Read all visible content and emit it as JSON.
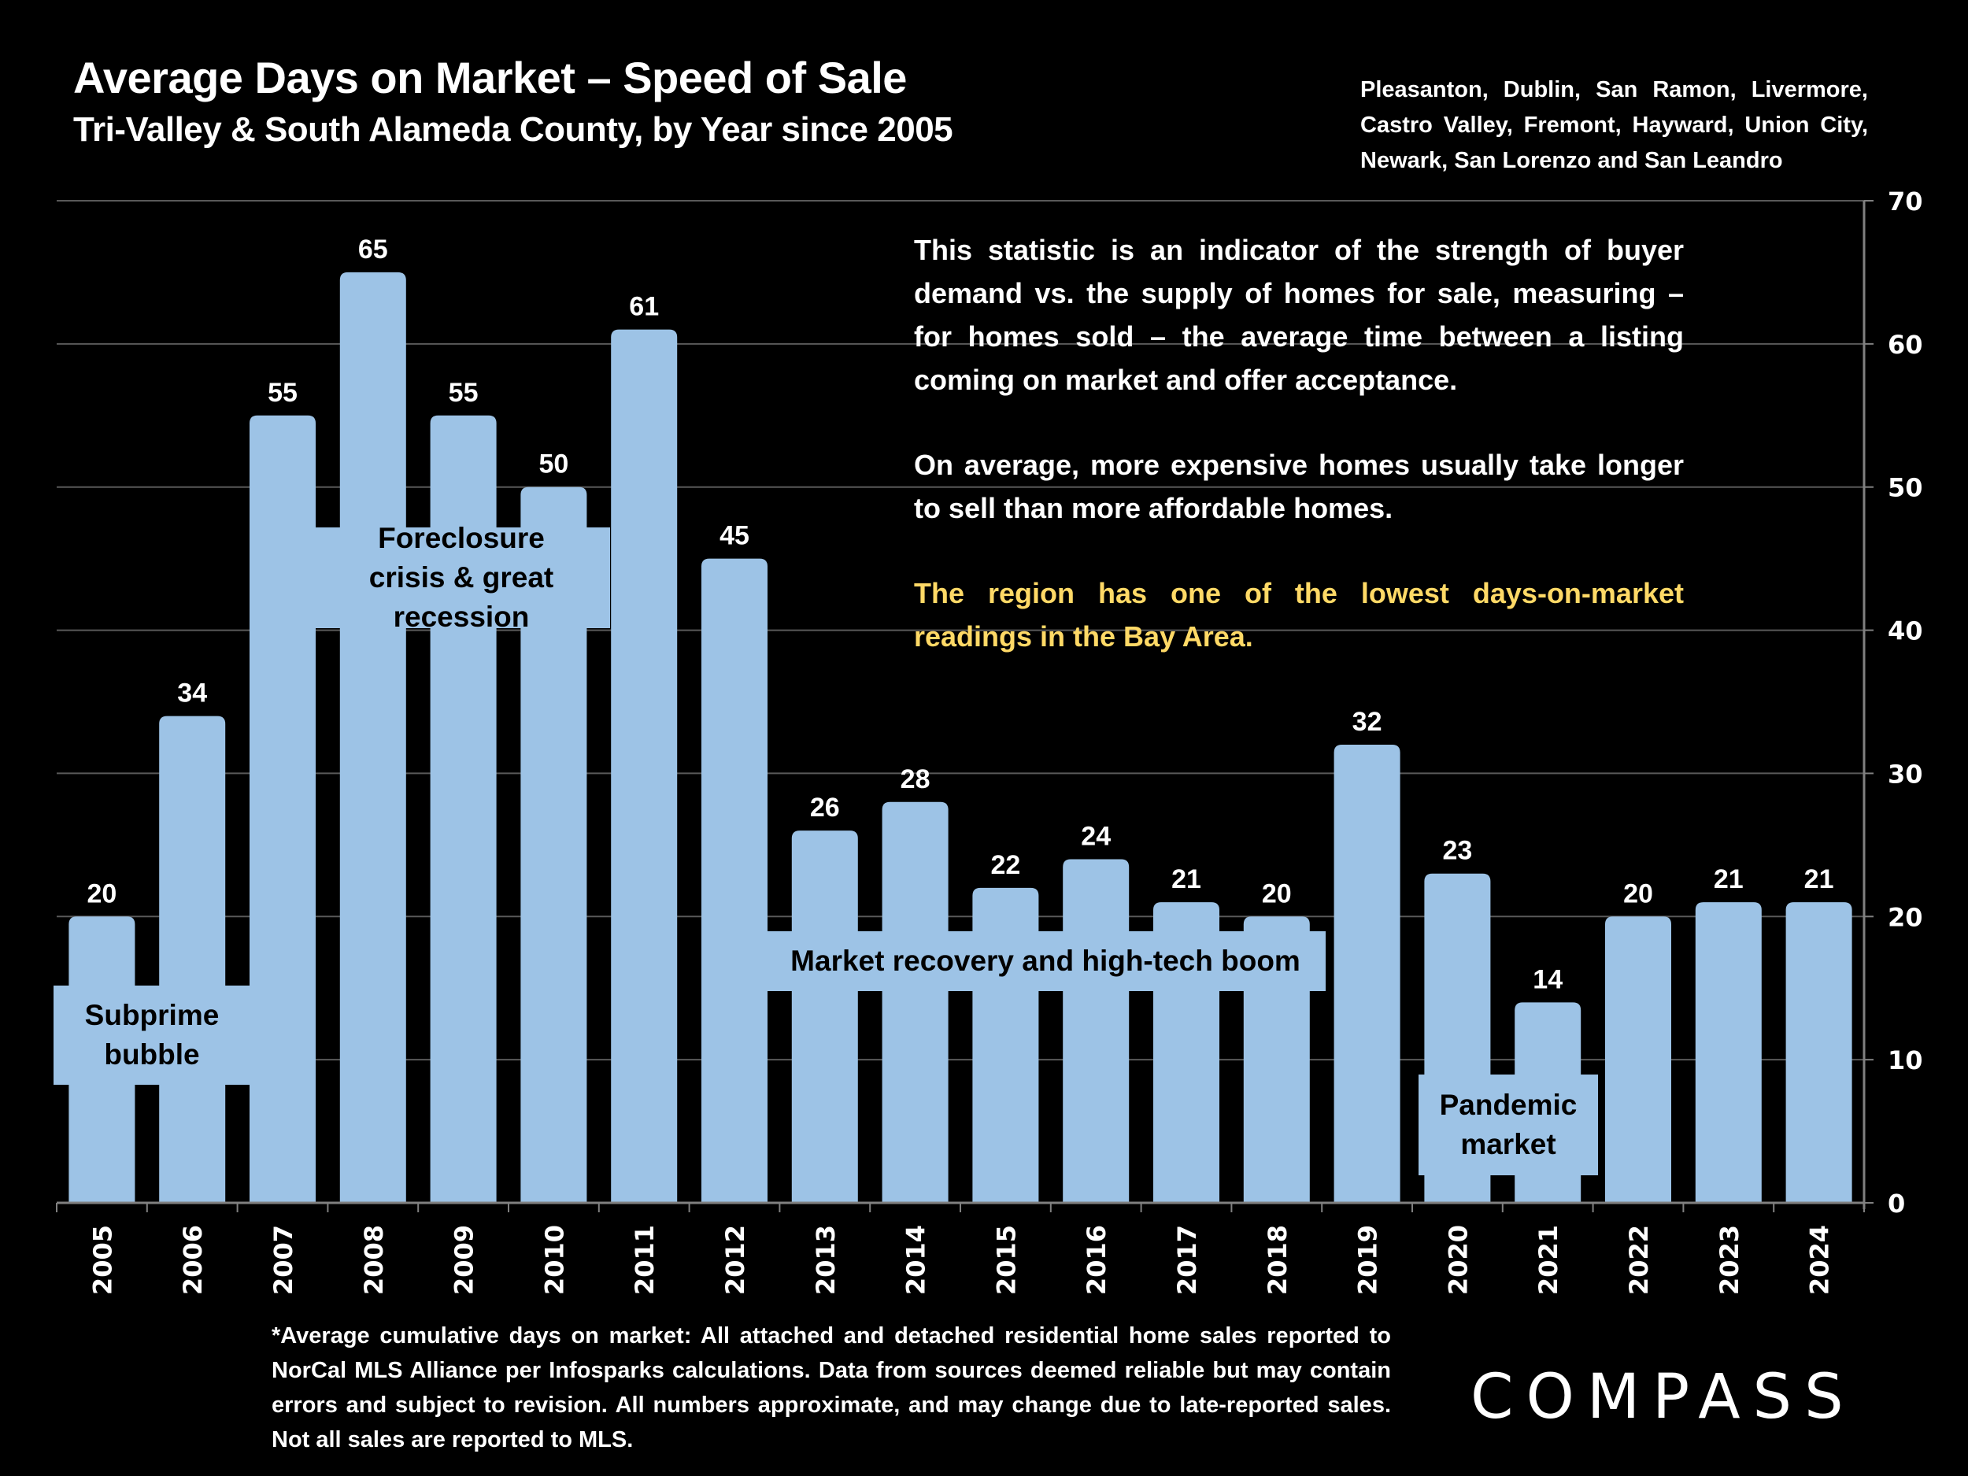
{
  "header": {
    "title": "Average Days on Market – Speed of Sale",
    "subtitle": "Tri-Valley & South Alameda County, by Year since 2005",
    "region_note": "Pleasanton, Dublin, San Ramon, Livermore, Castro Valley, Fremont, Hayward, Union City, Newark, San Lorenzo and San Leandro"
  },
  "blurb": {
    "paragraph1": "This statistic is an indicator of the strength of buyer demand vs. the supply of homes for sale, measuring – for homes sold – the average time between a listing coming on market and offer acceptance.",
    "paragraph2": "On average, more expensive homes usually take longer to sell than more affordable homes.",
    "paragraph3": "The region has one of the lowest days-on-market readings in the Bay Area."
  },
  "annotations": {
    "subprime": "Subprime bubble",
    "foreclosure": "Foreclosure crisis & great recession",
    "recovery": "Market recovery and high-tech boom",
    "pandemic": "Pandemic market"
  },
  "footnote": "*Average cumulative days on market: All attached and detached residential home sales reported to NorCal MLS Alliance per Infosparks calculations. Data from sources deemed reliable but may contain errors and subject to revision. All numbers approximate, and may change due to late-reported sales. Not all sales are reported to MLS.",
  "logo": "COMPASS",
  "colors": {
    "bar": "#9DC3E6",
    "highlight_text": "#FFD966",
    "background": "#000000",
    "gridline": "#595959"
  },
  "chart_data": {
    "type": "bar",
    "title": "Average Days on Market – Speed of Sale",
    "xlabel": "",
    "ylabel": "",
    "categories": [
      "2005",
      "2006",
      "2007",
      "2008",
      "2009",
      "2010",
      "2011",
      "2012",
      "2013",
      "2014",
      "2015",
      "2016",
      "2017",
      "2018",
      "2019",
      "2020",
      "2021",
      "2022",
      "2023",
      "2024"
    ],
    "values": [
      20,
      34,
      55,
      65,
      55,
      50,
      61,
      45,
      26,
      28,
      22,
      24,
      21,
      20,
      32,
      23,
      14,
      20,
      21,
      21
    ],
    "ylim": [
      0,
      70
    ],
    "yticks": [
      0,
      10,
      20,
      30,
      40,
      50,
      60,
      70
    ],
    "y_axis_side": "right",
    "grid": true,
    "data_labels": true,
    "legend": "none"
  }
}
